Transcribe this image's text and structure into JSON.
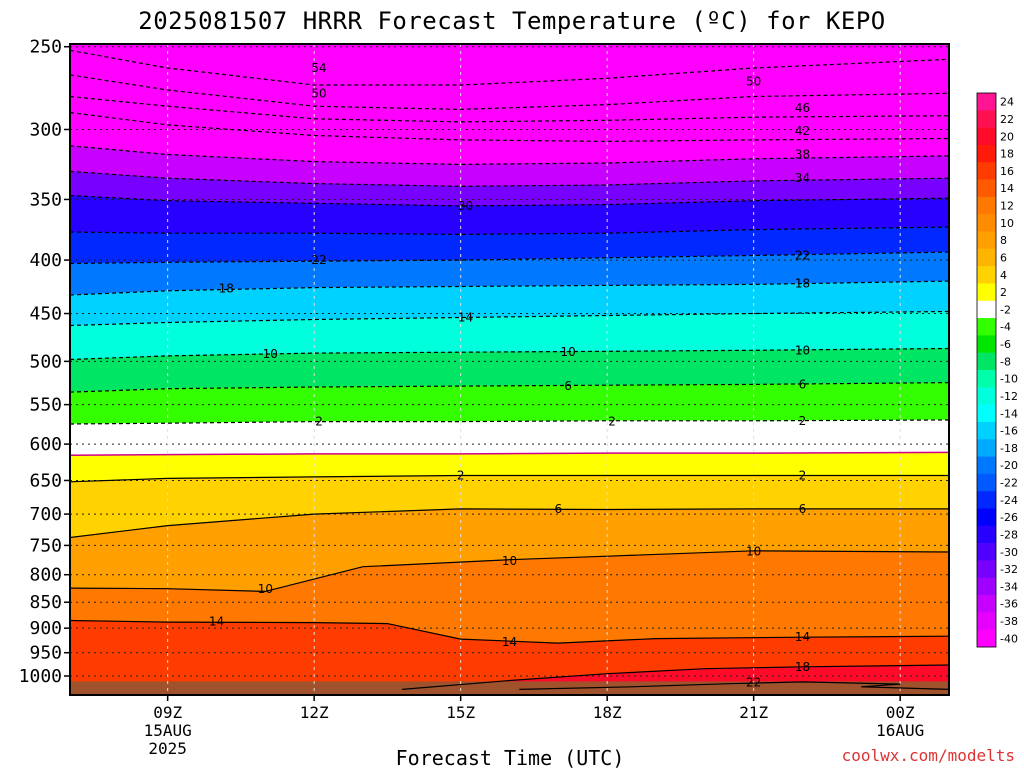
{
  "chart_data": {
    "type": "heatmap",
    "title": "2025081507 HRRR Forecast Temperature (ºC) for KEPO",
    "xlabel": "Forecast Time (UTC)",
    "ylabel": "",
    "x_ticks": [
      {
        "hour": 9,
        "lines": [
          "09Z",
          "15AUG",
          "2025"
        ]
      },
      {
        "hour": 12,
        "lines": [
          "12Z"
        ]
      },
      {
        "hour": 15,
        "lines": [
          "15Z"
        ]
      },
      {
        "hour": 18,
        "lines": [
          "18Z"
        ]
      },
      {
        "hour": 21,
        "lines": [
          "21Z"
        ]
      },
      {
        "hour": 24,
        "lines": [
          "00Z",
          "16AUG"
        ]
      }
    ],
    "xlim": [
      7,
      25
    ],
    "y_ticks": [
      250,
      300,
      350,
      400,
      450,
      500,
      550,
      600,
      650,
      700,
      750,
      800,
      850,
      900,
      950,
      1000
    ],
    "y_pressure_rows": [
      {
        "p": 250,
        "top": 44,
        "bottom": 129
      },
      {
        "p": 300,
        "top": 129,
        "bottom": 205
      },
      {
        "p": 350,
        "top": 205,
        "bottom": 265
      },
      {
        "p": 400,
        "top": 265,
        "bottom": 315
      },
      {
        "p": 450,
        "top": 315,
        "bottom": 358
      },
      {
        "p": 500,
        "top": 358,
        "bottom": 400
      },
      {
        "p": 550,
        "top": 400,
        "bottom": 438
      },
      {
        "p": 600,
        "top": 438,
        "bottom": 473
      },
      {
        "p": 650,
        "top": 473,
        "bottom": 505
      },
      {
        "p": 700,
        "top": 505,
        "bottom": 534
      },
      {
        "p": 750,
        "top": 534,
        "bottom": 561
      },
      {
        "p": 800,
        "top": 561,
        "bottom": 587
      },
      {
        "p": 850,
        "top": 587,
        "bottom": 611
      },
      {
        "p": 900,
        "top": 611,
        "bottom": 634
      },
      {
        "p": 950,
        "top": 634,
        "bottom": 655
      },
      {
        "p": 1000,
        "top": 655,
        "bottom": 695
      }
    ],
    "ylim": [
      1030,
      200
    ],
    "y_reversed": true,
    "grid": true,
    "colorbar_levels": [
      24,
      22,
      20,
      18,
      16,
      14,
      12,
      10,
      8,
      6,
      4,
      2,
      -2,
      -4,
      -6,
      -8,
      -10,
      -12,
      -14,
      -16,
      -18,
      -20,
      -22,
      -24,
      -26,
      -28,
      -30,
      -32,
      -34,
      -36,
      -38,
      -40
    ],
    "colorbar_colors": [
      "#ff1493",
      "#ff1050",
      "#ff0a28",
      "#ff1a0a",
      "#ff3c00",
      "#ff5a00",
      "#ff7800",
      "#ff8c00",
      "#ffa000",
      "#ffb400",
      "#ffd200",
      "#ffff00",
      "#ffffff",
      "#33ff00",
      "#00e600",
      "#00e664",
      "#00ffaa",
      "#00ffdc",
      "#00ffff",
      "#00d2ff",
      "#00aaff",
      "#0078ff",
      "#005aff",
      "#0028ff",
      "#0000ff",
      "#2800ff",
      "#5000ff",
      "#7800ff",
      "#a000ff",
      "#c800ff",
      "#e600ff",
      "#ff00ff"
    ],
    "contours": [
      {
        "level": -54,
        "style": "dashed",
        "points": [
          [
            7,
            252
          ],
          [
            9,
            262
          ],
          [
            12,
            272
          ],
          [
            15,
            272
          ],
          [
            18,
            268
          ],
          [
            21,
            262
          ],
          [
            25,
            257
          ]
        ]
      },
      {
        "level": -50,
        "style": "dashed",
        "points": [
          [
            7,
            266
          ],
          [
            9,
            275
          ],
          [
            12,
            285
          ],
          [
            15,
            287
          ],
          [
            18,
            284
          ],
          [
            21,
            279
          ],
          [
            25,
            277
          ]
        ]
      },
      {
        "level": -46,
        "style": "dashed",
        "points": [
          [
            7,
            279
          ],
          [
            9,
            285
          ],
          [
            12,
            293
          ],
          [
            15,
            295
          ],
          [
            18,
            294
          ],
          [
            21,
            292
          ],
          [
            25,
            291
          ]
        ]
      },
      {
        "level": -42,
        "style": "dashed",
        "points": [
          [
            7,
            289
          ],
          [
            9,
            297
          ],
          [
            12,
            304
          ],
          [
            15,
            307
          ],
          [
            18,
            308
          ],
          [
            21,
            307
          ],
          [
            25,
            306
          ]
        ]
      },
      {
        "level": -38,
        "style": "dashed",
        "points": [
          [
            7,
            311
          ],
          [
            9,
            317
          ],
          [
            12,
            322
          ],
          [
            15,
            324
          ],
          [
            18,
            323
          ],
          [
            21,
            320
          ],
          [
            25,
            318
          ]
        ]
      },
      {
        "level": -34,
        "style": "dashed",
        "points": [
          [
            7,
            329
          ],
          [
            9,
            334
          ],
          [
            12,
            338
          ],
          [
            15,
            340
          ],
          [
            18,
            339
          ],
          [
            21,
            336
          ],
          [
            25,
            334
          ]
        ]
      },
      {
        "level": -30,
        "style": "dashed",
        "points": [
          [
            7,
            347
          ],
          [
            9,
            351
          ],
          [
            12,
            353
          ],
          [
            15,
            355
          ],
          [
            18,
            354
          ],
          [
            21,
            351
          ],
          [
            25,
            349
          ]
        ]
      },
      {
        "level": -26,
        "style": "dashed",
        "points": [
          [
            7,
            376
          ],
          [
            9,
            377
          ],
          [
            12,
            377
          ],
          [
            15,
            378
          ],
          [
            18,
            377
          ],
          [
            21,
            374
          ],
          [
            25,
            372
          ]
        ]
      },
      {
        "level": -22,
        "style": "dashed",
        "points": [
          [
            7,
            403
          ],
          [
            9,
            402
          ],
          [
            12,
            401
          ],
          [
            15,
            400
          ],
          [
            18,
            398
          ],
          [
            21,
            396
          ],
          [
            25,
            393
          ]
        ]
      },
      {
        "level": -18,
        "style": "dashed",
        "points": [
          [
            7,
            432
          ],
          [
            9,
            428
          ],
          [
            12,
            425
          ],
          [
            15,
            424
          ],
          [
            18,
            423
          ],
          [
            21,
            422
          ],
          [
            25,
            419
          ]
        ]
      },
      {
        "level": -14,
        "style": "dashed",
        "points": [
          [
            7,
            462
          ],
          [
            9,
            459
          ],
          [
            12,
            456
          ],
          [
            15,
            454
          ],
          [
            18,
            452
          ],
          [
            21,
            450
          ],
          [
            25,
            448
          ]
        ]
      },
      {
        "level": -10,
        "style": "dashed",
        "points": [
          [
            7,
            498
          ],
          [
            9,
            494
          ],
          [
            12,
            491
          ],
          [
            15,
            490
          ],
          [
            18,
            489
          ],
          [
            21,
            488
          ],
          [
            25,
            486
          ]
        ]
      },
      {
        "level": -6,
        "style": "dashed",
        "points": [
          [
            7,
            535
          ],
          [
            9,
            531
          ],
          [
            12,
            529
          ],
          [
            15,
            528
          ],
          [
            18,
            527
          ],
          [
            21,
            526
          ],
          [
            25,
            524
          ]
        ]
      },
      {
        "level": -2,
        "style": "dashed",
        "points": [
          [
            7,
            574
          ],
          [
            9,
            573
          ],
          [
            12,
            571
          ],
          [
            15,
            571
          ],
          [
            18,
            570
          ],
          [
            21,
            570
          ],
          [
            25,
            569
          ]
        ]
      },
      {
        "level": 0,
        "style": "magenta",
        "points": [
          [
            7,
            615
          ],
          [
            9,
            614
          ],
          [
            12,
            613
          ],
          [
            15,
            613
          ],
          [
            18,
            612
          ],
          [
            21,
            612
          ],
          [
            25,
            611
          ]
        ]
      },
      {
        "level": 2,
        "style": "solid",
        "points": [
          [
            7,
            652
          ],
          [
            9,
            647
          ],
          [
            12,
            645
          ],
          [
            15,
            643
          ],
          [
            18,
            643
          ],
          [
            21,
            643
          ],
          [
            25,
            643
          ]
        ]
      },
      {
        "level": 6,
        "style": "solid",
        "points": [
          [
            7,
            737
          ],
          [
            9,
            718
          ],
          [
            12,
            700
          ],
          [
            15,
            692
          ],
          [
            18,
            693
          ],
          [
            21,
            692
          ],
          [
            25,
            692
          ]
        ]
      },
      {
        "level": 10,
        "style": "solid",
        "points": [
          [
            7,
            824
          ],
          [
            9,
            825
          ],
          [
            11,
            830
          ],
          [
            13,
            786
          ],
          [
            16,
            774
          ],
          [
            18,
            768
          ],
          [
            21,
            759
          ],
          [
            25,
            761
          ]
        ]
      },
      {
        "level": 14,
        "style": "solid",
        "points": [
          [
            7,
            885
          ],
          [
            9,
            888
          ],
          [
            12,
            889
          ],
          [
            13.5,
            891
          ],
          [
            15,
            922
          ],
          [
            17,
            930
          ],
          [
            19,
            921
          ],
          [
            22,
            918
          ],
          [
            25,
            916
          ]
        ]
      },
      {
        "level": 18,
        "style": "solid",
        "points": [
          [
            13.8,
            1030
          ],
          [
            16,
            1010
          ],
          [
            18,
            995
          ],
          [
            20,
            984
          ],
          [
            22,
            980
          ],
          [
            25,
            976
          ]
        ]
      },
      {
        "level": 22,
        "style": "solid",
        "points": [
          [
            16.2,
            1030
          ],
          [
            18.5,
            1024
          ],
          [
            20.5,
            1017
          ],
          [
            22,
            1013
          ],
          [
            24,
            1018
          ],
          [
            23.2,
            1024
          ],
          [
            25,
            1030
          ]
        ]
      }
    ],
    "contour_labels": [
      {
        "text": "54",
        "hour": 12.1,
        "p": 262
      },
      {
        "text": "50",
        "hour": 12.1,
        "p": 277
      },
      {
        "text": "50",
        "hour": 21,
        "p": 270
      },
      {
        "text": "46",
        "hour": 22,
        "p": 286
      },
      {
        "text": "42",
        "hour": 22,
        "p": 301
      },
      {
        "text": "38",
        "hour": 22,
        "p": 317
      },
      {
        "text": "34",
        "hour": 22,
        "p": 334
      },
      {
        "text": "30",
        "hour": 15.1,
        "p": 355
      },
      {
        "text": "22",
        "hour": 12.1,
        "p": 400
      },
      {
        "text": "22",
        "hour": 22,
        "p": 396
      },
      {
        "text": "18",
        "hour": 10.2,
        "p": 426
      },
      {
        "text": "18",
        "hour": 22,
        "p": 421
      },
      {
        "text": "14",
        "hour": 15.1,
        "p": 454
      },
      {
        "text": "10",
        "hour": 11.1,
        "p": 492
      },
      {
        "text": "10",
        "hour": 17.2,
        "p": 490
      },
      {
        "text": "10",
        "hour": 22,
        "p": 488
      },
      {
        "text": "6",
        "hour": 17.2,
        "p": 528
      },
      {
        "text": "6",
        "hour": 22,
        "p": 526
      },
      {
        "text": "2",
        "hour": 12.1,
        "p": 571
      },
      {
        "text": "2",
        "hour": 18.1,
        "p": 571
      },
      {
        "text": "2",
        "hour": 22,
        "p": 570
      },
      {
        "text": "2",
        "hour": 15,
        "p": 643
      },
      {
        "text": "2",
        "hour": 22,
        "p": 643
      },
      {
        "text": "6",
        "hour": 17,
        "p": 692
      },
      {
        "text": "6",
        "hour": 22,
        "p": 692
      },
      {
        "text": "10",
        "hour": 11,
        "p": 826
      },
      {
        "text": "10",
        "hour": 16,
        "p": 776
      },
      {
        "text": "10",
        "hour": 21,
        "p": 760
      },
      {
        "text": "14",
        "hour": 10,
        "p": 887
      },
      {
        "text": "14",
        "hour": 16,
        "p": 928
      },
      {
        "text": "14",
        "hour": 22,
        "p": 918
      },
      {
        "text": "18",
        "hour": 22,
        "p": 980
      },
      {
        "text": "22",
        "hour": 21,
        "p": 1014
      }
    ]
  },
  "credit": "coolwx.com/modelts"
}
